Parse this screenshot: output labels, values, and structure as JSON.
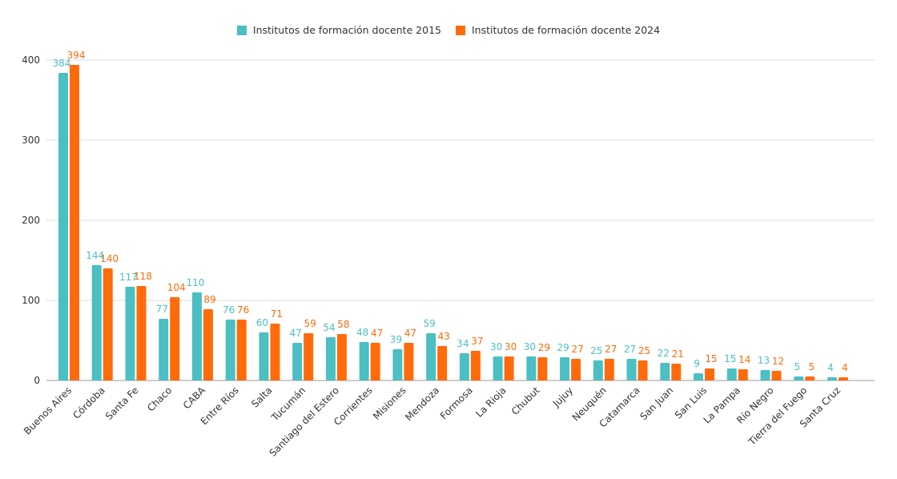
{
  "chart_data": {
    "type": "bar",
    "title": "",
    "xlabel": "",
    "ylabel": "",
    "ylim": [
      0,
      400
    ],
    "yticks": [
      0,
      100,
      200,
      300,
      400
    ],
    "grid": true,
    "legend_placement": "top-center",
    "categories": [
      "Buenos Aires",
      "Córdoba",
      "Santa Fe",
      "Chaco",
      "CABA",
      "Entre Ríos",
      "Salta",
      "Tucumán",
      "Santiago del Estero",
      "Corrientes",
      "Misiones",
      "Mendoza",
      "Formosa",
      "La Rioja",
      "Chubut",
      "Jujuy",
      "Neuquén",
      "Catamarca",
      "San Juan",
      "San Luis",
      "La Pampa",
      "Río Negro",
      "Tierra del Fuego",
      "Santa Cruz"
    ],
    "series": [
      {
        "name": "Institutos de formación docente 2015",
        "color": "#4bbfc3",
        "values": [
          384,
          144,
          117,
          77,
          110,
          76,
          60,
          47,
          54,
          48,
          39,
          59,
          34,
          30,
          30,
          29,
          25,
          27,
          22,
          9,
          15,
          13,
          5,
          4
        ]
      },
      {
        "name": "Institutos de formación docente 2024",
        "color": "#ff6b0a",
        "values": [
          394,
          140,
          118,
          104,
          89,
          76,
          71,
          59,
          58,
          47,
          47,
          43,
          37,
          30,
          29,
          27,
          27,
          25,
          21,
          15,
          14,
          12,
          5,
          4
        ]
      }
    ]
  }
}
